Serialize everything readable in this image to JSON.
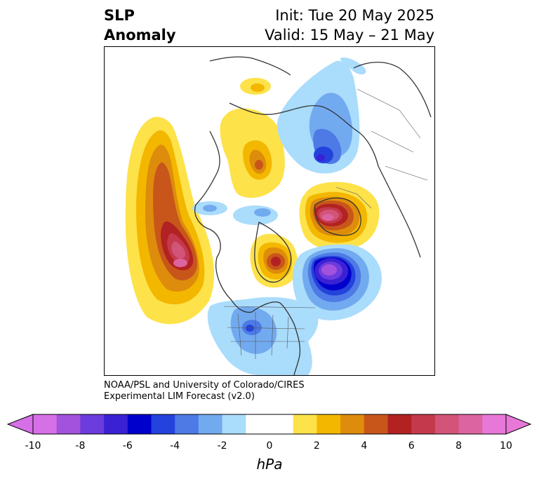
{
  "title": {
    "left_line1": "SLP",
    "left_line2": "Anomaly",
    "init": "Init: Tue 20 May 2025",
    "valid": "Valid: 15 May – 21 May"
  },
  "credit": {
    "line1": "NOAA/PSL and University of Colorado/CIRES",
    "line2": "Experimental LIM Forecast (v2.0)"
  },
  "colorbar": {
    "unit": "hPa",
    "ticks": [
      "-10",
      "-8",
      "-6",
      "-4",
      "-2",
      "0",
      "2",
      "4",
      "6",
      "8",
      "10"
    ],
    "colors": [
      "#d670e6",
      "#a252dc",
      "#6c3cdc",
      "#3a22d4",
      "#0000cc",
      "#2442dc",
      "#4e7ae6",
      "#72aaf0",
      "#aadcfc",
      "#ffffff",
      "#ffffff",
      "#fde24a",
      "#f3b700",
      "#de8c0c",
      "#c8561a",
      "#b22222",
      "#c43a4c",
      "#d25478",
      "#dc64a0",
      "#e878d8"
    ],
    "extend_low": "#d670e6",
    "extend_high": "#e878d8"
  }
}
